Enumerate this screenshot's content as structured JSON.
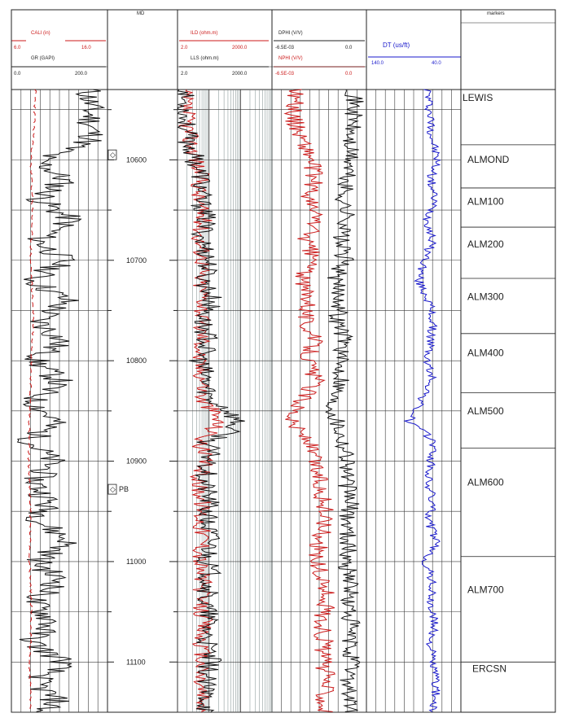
{
  "tracks": {
    "gr_track": {
      "cali_name": "CALI (in)",
      "cali_min": "6.0",
      "cali_max": "16.0",
      "gr_name": "GR (GAPI)",
      "gr_min": "0.0",
      "gr_max": "200.0"
    },
    "depth_track": {
      "label": "MD"
    },
    "resistivity_track": {
      "ild_name": "ILD (ohm.m)",
      "ild_min": "2.0",
      "ild_max": "2000.0",
      "lls_name": "LLS (ohm.m)",
      "lls_min": "2.0",
      "lls_max": "2000.0"
    },
    "porosity_track": {
      "dphi_name": "DPHI (V/V)",
      "dphi_min": "-6.5E-03",
      "dphi_max": "0.0",
      "nphi_name": "NPHI (V/V)",
      "nphi_min": "-6.5E-03",
      "nphi_max": "0.0"
    },
    "sonic_track": {
      "dt_name": "DT (us/ft)",
      "dt_min": "140.0",
      "dt_max": "40.0"
    },
    "marker_track": {
      "label": "markers"
    }
  },
  "flags": {
    "diamond": "◇",
    "pb": "PB"
  },
  "colors": {
    "black_curve": "#111111",
    "red_curve": "#cc1a1a",
    "blue_curve": "#1a1acc",
    "grid": "#3a3a3a",
    "fine_grid": "#7a8a8a"
  },
  "chart_data": {
    "type": "line",
    "title": "",
    "ylabel": "MD",
    "ylim": [
      10530,
      11150
    ],
    "y_ticks": [
      "10600",
      "10700",
      "10800",
      "10900",
      "11000",
      "11100"
    ],
    "markers": [
      {
        "name": "LEWIS",
        "depth": 10530
      },
      {
        "name": "ALMOND",
        "depth": 10585
      },
      {
        "name": "ALM100",
        "depth": 10628
      },
      {
        "name": "ALM200",
        "depth": 10667
      },
      {
        "name": "ALM300",
        "depth": 10718
      },
      {
        "name": "ALM400",
        "depth": 10773
      },
      {
        "name": "ALM500",
        "depth": 10832
      },
      {
        "name": "ALM600",
        "depth": 10887
      },
      {
        "name": "ALM700",
        "depth": 10995
      },
      {
        "name": "ERCSN",
        "depth": 11100
      }
    ],
    "flags": [
      {
        "label": "◇",
        "depth": 10595
      },
      {
        "label": "PB",
        "depth": 10928
      }
    ],
    "series": [
      {
        "name": "GR",
        "unit": "GAPI",
        "range": [
          0,
          200
        ],
        "depth": [
          10530,
          10560,
          10580,
          10600,
          10620,
          10640,
          10660,
          10680,
          10700,
          10720,
          10740,
          10760,
          10780,
          10800,
          10820,
          10840,
          10860,
          10880,
          10900,
          10920,
          10940,
          10960,
          10980,
          11000,
          11020,
          11040,
          11060,
          11080,
          11100,
          11120,
          11140,
          11150
        ],
        "values": [
          160,
          165,
          170,
          55,
          110,
          60,
          125,
          55,
          110,
          45,
          115,
          55,
          105,
          50,
          100,
          45,
          90,
          40,
          85,
          50,
          75,
          60,
          120,
          55,
          100,
          45,
          85,
          40,
          110,
          50,
          95,
          60
        ]
      },
      {
        "name": "CALI",
        "unit": "in",
        "range": [
          6,
          16
        ],
        "depth": [
          10530,
          10580,
          10600,
          10650,
          10700,
          10760,
          10800,
          10850,
          10900,
          10950,
          11000,
          11050,
          11100,
          11150
        ],
        "values": [
          8.5,
          8.3,
          8.0,
          8.2,
          8.0,
          8.3,
          8.1,
          7.9,
          7.8,
          8.0,
          7.9,
          8.1,
          7.9,
          8.0
        ]
      },
      {
        "name": "ILD",
        "unit": "ohm.m",
        "range": [
          2,
          2000
        ],
        "depth": [
          10530,
          10560,
          10580,
          10600,
          10620,
          10640,
          10660,
          10680,
          10700,
          10720,
          10740,
          10760,
          10780,
          10800,
          10820,
          10840,
          10860,
          10880,
          10900,
          10920,
          10940,
          10960,
          10980,
          11000,
          11020,
          11040,
          11060,
          11080,
          11100,
          11120,
          11140,
          11150
        ],
        "values": [
          3,
          4,
          5,
          8,
          11,
          9,
          13,
          10,
          14,
          10,
          15,
          11,
          13,
          9,
          14,
          12,
          40,
          10,
          14,
          9,
          13,
          11,
          14,
          10,
          13,
          10,
          14,
          11,
          12,
          10,
          13,
          11
        ]
      },
      {
        "name": "LLS",
        "unit": "ohm.m",
        "range": [
          2,
          2000
        ],
        "depth": [
          10530,
          10560,
          10580,
          10600,
          10620,
          10640,
          10660,
          10680,
          10700,
          10720,
          10740,
          10760,
          10780,
          10800,
          10820,
          10840,
          10860,
          10880,
          10900,
          10920,
          10940,
          10960,
          10980,
          11000,
          11020,
          11040,
          11060,
          11080,
          11100,
          11120,
          11140,
          11150
        ],
        "values": [
          3,
          3.5,
          4,
          7,
          12,
          10,
          16,
          12,
          20,
          14,
          25,
          12,
          18,
          10,
          16,
          20,
          150,
          18,
          22,
          14,
          20,
          16,
          24,
          18,
          22,
          15,
          20,
          16,
          22,
          14,
          18,
          16
        ]
      },
      {
        "name": "DPHI",
        "unit": "V/V",
        "range": [
          -0.0065,
          0
        ],
        "depth": [
          10530,
          10560,
          10580,
          10600,
          10620,
          10640,
          10660,
          10680,
          10700,
          10720,
          10740,
          10760,
          10780,
          10800,
          10820,
          10840,
          10860,
          10880,
          10900,
          10920,
          10940,
          10960,
          10980,
          11000,
          11020,
          11040,
          11060,
          11080,
          11100,
          11120,
          11140,
          11150
        ],
        "values": [
          -0.0008,
          -0.0009,
          -0.0012,
          -0.0011,
          -0.0014,
          -0.0016,
          -0.0013,
          -0.0018,
          -0.0015,
          -0.0022,
          -0.0017,
          -0.002,
          -0.0014,
          -0.0019,
          -0.0016,
          -0.0024,
          -0.002,
          -0.0016,
          -0.0012,
          -0.0014,
          -0.0011,
          -0.0013,
          -0.0012,
          -0.0014,
          -0.001,
          -0.0013,
          -0.0011,
          -0.0012,
          -0.001,
          -0.0012,
          -0.0011,
          -0.0012
        ]
      },
      {
        "name": "NPHI",
        "unit": "V/V",
        "range": [
          -0.0065,
          0
        ],
        "depth": [
          10530,
          10560,
          10580,
          10600,
          10620,
          10640,
          10660,
          10680,
          10700,
          10720,
          10740,
          10760,
          10780,
          10800,
          10820,
          10840,
          10860,
          10880,
          10900,
          10920,
          10940,
          10960,
          10980,
          11000,
          11020,
          11040,
          11060,
          11080,
          11100,
          11120,
          11140,
          11150
        ],
        "values": [
          -0.0048,
          -0.005,
          -0.0044,
          -0.0038,
          -0.0036,
          -0.004,
          -0.0034,
          -0.0042,
          -0.0036,
          -0.0046,
          -0.0038,
          -0.0042,
          -0.0036,
          -0.004,
          -0.0035,
          -0.0044,
          -0.0052,
          -0.004,
          -0.0036,
          -0.0032,
          -0.003,
          -0.0028,
          -0.0032,
          -0.0035,
          -0.003,
          -0.0027,
          -0.0031,
          -0.0029,
          -0.003,
          -0.0027,
          -0.0029,
          -0.0028
        ]
      },
      {
        "name": "DT",
        "unit": "us/ft",
        "range": [
          140,
          40
        ],
        "depth": [
          10530,
          10560,
          10580,
          10600,
          10620,
          10640,
          10660,
          10680,
          10700,
          10720,
          10740,
          10760,
          10780,
          10800,
          10820,
          10840,
          10860,
          10880,
          10900,
          10920,
          10940,
          10960,
          10980,
          11000,
          11020,
          11040,
          11060,
          11080,
          11100,
          11120,
          11140,
          11150
        ],
        "values": [
          75,
          72,
          70,
          65,
          72,
          68,
          75,
          70,
          78,
          85,
          74,
          70,
          72,
          76,
          70,
          82,
          95,
          68,
          72,
          75,
          70,
          74,
          66,
          78,
          70,
          73,
          68,
          72,
          70,
          66,
          68,
          70
        ]
      }
    ]
  }
}
